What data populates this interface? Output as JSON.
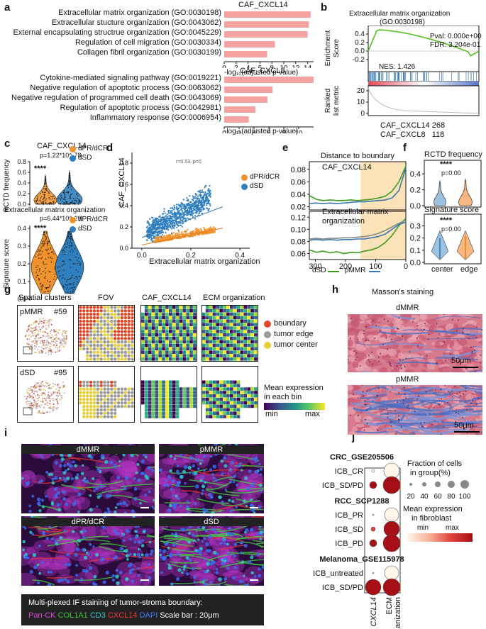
{
  "panels": {
    "a": "a",
    "b": "b",
    "c": "c",
    "d": "d",
    "e": "e",
    "f": "f",
    "g": "g",
    "h": "h",
    "i": "i",
    "j": "j"
  },
  "panel_a": {
    "chart1_title": "CAF_CXCL14",
    "chart1_terms": [
      {
        "label": "Extracellular matrix organization (GO:0030198)",
        "value": 14.5
      },
      {
        "label": "Extracellular stucture organization (GO:0043062)",
        "value": 14.2
      },
      {
        "label": "External encapsulating structrue organization (GO:0045229)",
        "value": 14.0
      },
      {
        "label": "Regulation of cell migration (GO:0030334)",
        "value": 8.5
      },
      {
        "label": "Collagen fibril organization (GO:0030199)",
        "value": 7.2
      }
    ],
    "chart1_ticks": [
      "0",
      "2",
      "4",
      "6",
      "8",
      "10",
      "12",
      "14"
    ],
    "chart1_xlabel": "-log₁₀(adjusted p-value)",
    "chart2_title": "CAF_CXCL8",
    "chart2_terms": [
      {
        "label": "Cytokine-mediated signaling pathway (GO:0019221)",
        "value": 12.0
      },
      {
        "label": "Negative regulation of apoptotic process (GO:0063062)",
        "value": 6.5
      },
      {
        "label": "Negative regulation of programmed cell death (GO:0043069)",
        "value": 5.8
      },
      {
        "label": "Regulation of apoptotic process (GO:0042981)",
        "value": 4.2
      },
      {
        "label": "Inflammatory response (GO:0006954)",
        "value": 3.3
      }
    ],
    "chart2_ticks": [
      "0",
      "2",
      "4",
      "6",
      "8",
      "10"
    ],
    "chart2_xlabel": "-log₁₀(adjusted p-value)"
  },
  "panel_b": {
    "title1": "Extracellular matrix organization",
    "title2": "(GO:0030198)",
    "pval": "Pval: 0.000e+00",
    "fdr": "FDR: 3.204e-01",
    "nes": "NES: 1.426",
    "ylabel1": "Enrichment",
    "ylabel2": "Score",
    "yticks": [
      "0.4",
      "0.2",
      "0.0",
      "-0.2"
    ],
    "ylabel3": "Ranked",
    "ylabel4": "list metric",
    "rticks": [
      "20",
      "10",
      "0"
    ],
    "xlabel_prefix": "0n cells:",
    "xticks": [
      "15000",
      "30000"
    ],
    "count1": "CAF_CXCL14 268",
    "count2": "CAF_CXCL8   118"
  },
  "panel_c": {
    "title": "CAF_CXCL14",
    "pval1": "p=1.22*10^-78",
    "stars1": "****",
    "ylabel1": "RCTD frequency",
    "yticks1": [
      "0.8",
      "0.6",
      "0.4",
      "0.2",
      "0.0"
    ],
    "legend": [
      "dPR/dCR",
      "dSD"
    ],
    "title2": "Extracellular matrix organization",
    "pval2": "p=6.44*10^-29",
    "stars2": "****",
    "ylabel2": "Signature score",
    "yticks2": [
      "0.4",
      "0.3",
      "0.2",
      "0.1",
      "0.0"
    ]
  },
  "panel_d": {
    "annot": "r=0.53, p=0",
    "ylabel": "CAF_CXCL14",
    "xlabel": "Extracellular matrix organization",
    "xticks": [
      "0.0",
      "0.2",
      "0.4"
    ],
    "yticks": [
      "0.8",
      "0.6",
      "0.4",
      "0.2",
      "0.0"
    ],
    "legend": [
      "dPR/dCR",
      "dSD"
    ]
  },
  "panel_e": {
    "title": "Distance to boundary",
    "sub1": "CAF_CXCL14",
    "yticks1": [
      "0.08",
      "0.06",
      "0.04",
      "0.02"
    ],
    "sub2a": "Extracellular matrix",
    "sub2b": "organization",
    "yticks2": [
      "0.12",
      "0.10",
      "0.08",
      "0.06"
    ],
    "xticks": [
      "300",
      "200",
      "100",
      "0"
    ],
    "legend": [
      "dSD",
      "pMMR"
    ]
  },
  "panel_f": {
    "title1": "RCTD frequency",
    "stars1": "****",
    "p1": "p=0.00",
    "yticks1": [
      "0.4",
      "0.2",
      "0.0"
    ],
    "title2": "Signature score",
    "stars2": "****",
    "p2": "p=0.00",
    "yticks2": [
      "0.3",
      "0.2",
      "0.1",
      "0.0"
    ],
    "xticks": [
      "center",
      "edge"
    ]
  },
  "panel_g": {
    "col_titles": [
      "Spatial clusters",
      "FOV",
      "CAF_CXCL14",
      "ECM organization"
    ],
    "row1_name": "pMMR",
    "row1_id": "#59",
    "row2_name": "dSD",
    "row2_id": "#95",
    "legend": [
      "boundary",
      "tumor edge",
      "tumor center"
    ],
    "expr_title1": "Mean expression",
    "expr_title2": "in each bin",
    "expr_min": "min",
    "expr_max": "max"
  },
  "panel_h": {
    "title": "Masson's staining",
    "img1": "dMMR",
    "img2": "pMMR",
    "scale": "50μm"
  },
  "panel_i": {
    "imgs": [
      "dMMR",
      "pMMR",
      "dPR/dCR",
      "dSD"
    ],
    "caption": "Multi-plexed IF staining of tumor-stroma boundary:",
    "stains": [
      "Pan-CK",
      "COL1A1",
      "CD3",
      "CXCL14",
      "DAPI"
    ],
    "stain_colors": [
      "#e040e0",
      "#33cc33",
      "#33cccc",
      "#ff3333",
      "#3377ff"
    ],
    "scale": "Scale bar : 20μm"
  },
  "panel_j": {
    "groups": [
      {
        "name": "CRC_GSE205506",
        "rows": [
          "ICB_CR",
          "ICB_SD/PD"
        ]
      },
      {
        "name": "RCC_SCP1288",
        "rows": [
          "ICB_PR",
          "ICB_SD",
          "ICB_PD"
        ]
      },
      {
        "name": "Melanoma_GSE115978",
        "rows": [
          "ICB_untreated",
          "ICB_SD/PD"
        ]
      }
    ],
    "xlabels": [
      "CXCL14",
      "ECM organization"
    ],
    "size_title1": "Fraction of cells",
    "size_title2": "in group(%)",
    "size_ticks": [
      "20",
      "40",
      "60",
      "80",
      "100"
    ],
    "color_title1": "Mean expression",
    "color_title2": "in fibroblast",
    "color_min": "min",
    "color_max": "max"
  }
}
